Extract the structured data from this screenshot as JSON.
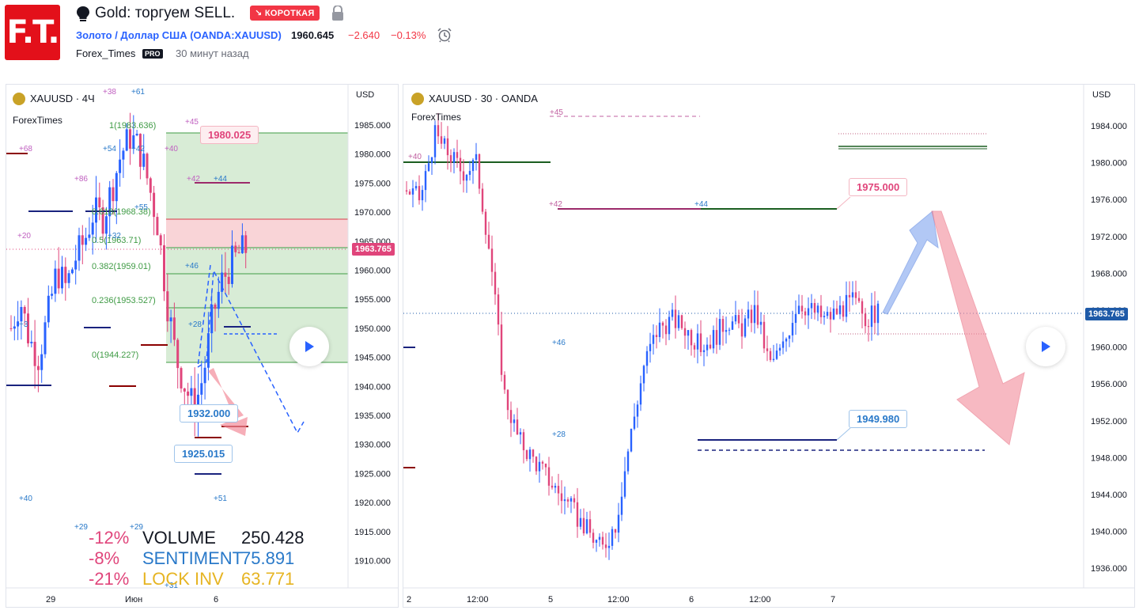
{
  "header": {
    "logo_text": "F.T.",
    "title": "Gold: торгуем SELL.",
    "badge": "↘ КОРОТКАЯ",
    "symbol_link": "Золото / Доллар США (OANDA:XAUUSD)",
    "price": "1960.645",
    "change": "−2.640",
    "change_pct": "−0.13%",
    "author": "Forex_Times",
    "pro": "PRO",
    "time_ago": "30 минут назад",
    "icons": [
      "bulb-icon",
      "lock-icon",
      "alarm-clock-icon"
    ]
  },
  "left_chart": {
    "symbol": "XAUUSD · 4Ч",
    "watermark": "ForexTimes",
    "currency": "USD",
    "y_ticks": [
      "1985.000",
      "1980.000",
      "1975.000",
      "1970.000",
      "1965.000",
      "1960.000",
      "1955.000",
      "1950.000",
      "1945.000",
      "1940.000",
      "1935.000",
      "1930.000",
      "1925.000",
      "1920.000",
      "1915.000",
      "1910.000"
    ],
    "x_ticks": [
      "29",
      "Июн",
      "6"
    ],
    "last_price": "1963.765",
    "fib_labels": [
      "1(1983.636)",
      "0.618(1968.38)",
      "0.5(1963.71)",
      "0.382(1959.01)",
      "0.236(1953.527)",
      "0(1944.227)"
    ],
    "callouts": [
      "1980.025",
      "1932.000",
      "1925.015"
    ],
    "annotations": [
      "+38",
      "+61",
      "+68",
      "+54",
      "+42",
      "+40",
      "+45",
      "+42",
      "+44",
      "+55",
      "+20",
      "+32",
      "+46",
      "+3",
      "+28",
      "+40",
      "+51",
      "+29",
      "+29",
      "+31",
      "+86"
    ],
    "stats": [
      {
        "pct": "-12%",
        "label": "VOLUME",
        "value": "250.428",
        "color": "#131722"
      },
      {
        "pct": "-8%",
        "label": "SENTIMENT",
        "value": "75.891",
        "color": "#2979c9"
      },
      {
        "pct": "-21%",
        "label": "LOCK INV",
        "value": "63.771",
        "color": "#e6b422"
      }
    ],
    "colors": {
      "up": "#2962ff",
      "down": "#e0457b",
      "fib_zone": "#d8ecd6",
      "red_zone": "#f9d4d7"
    }
  },
  "right_chart": {
    "symbol": "XAUUSD · 30 · OANDA",
    "watermark": "ForexTimes",
    "currency": "USD",
    "y_ticks": [
      "1984.000",
      "1980.000",
      "1976.000",
      "1972.000",
      "1968.000",
      "1964.000",
      "1960.000",
      "1956.000",
      "1952.000",
      "1948.000",
      "1944.000",
      "1940.000",
      "1936.000"
    ],
    "x_ticks": [
      "2",
      "12:00",
      "5",
      "12:00",
      "6",
      "12:00",
      "7"
    ],
    "last_price": "1963.765",
    "callouts": [
      "1975.000",
      "1949.980"
    ],
    "annotations": [
      "+45",
      "+40",
      "+42",
      "+44",
      "+46",
      "+28"
    ]
  }
}
